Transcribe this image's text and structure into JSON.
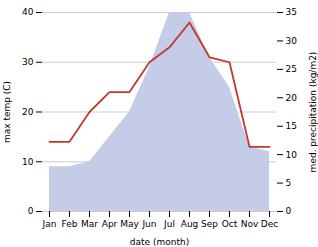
{
  "chart_data": {
    "type": "line",
    "categories": [
      "Jan",
      "Feb",
      "Mar",
      "Apr",
      "May",
      "Jun",
      "Jul",
      "Aug",
      "Sep",
      "Oct",
      "Nov",
      "Dec"
    ],
    "series": [
      {
        "type": "area",
        "color": "#c5cce8",
        "values": [
          9,
          9,
          10,
          15,
          20,
          29,
          40,
          40,
          31,
          25,
          13,
          12
        ]
      },
      {
        "type": "line",
        "color": "#c0392b",
        "values": [
          14,
          14,
          20,
          24,
          24,
          30,
          33,
          38,
          31,
          30,
          13,
          13
        ]
      }
    ],
    "xlabel": "date (month)",
    "ylabel": "max temp (C)",
    "y2label": "med. precipitation (kg/m2)",
    "ylim": [
      0,
      40
    ],
    "yticks": [
      0,
      10,
      20,
      30,
      40
    ],
    "y2lim": [
      0,
      35
    ],
    "y2ticks": [
      0,
      5,
      10,
      15,
      20,
      25,
      30,
      35
    ],
    "grid": true
  }
}
